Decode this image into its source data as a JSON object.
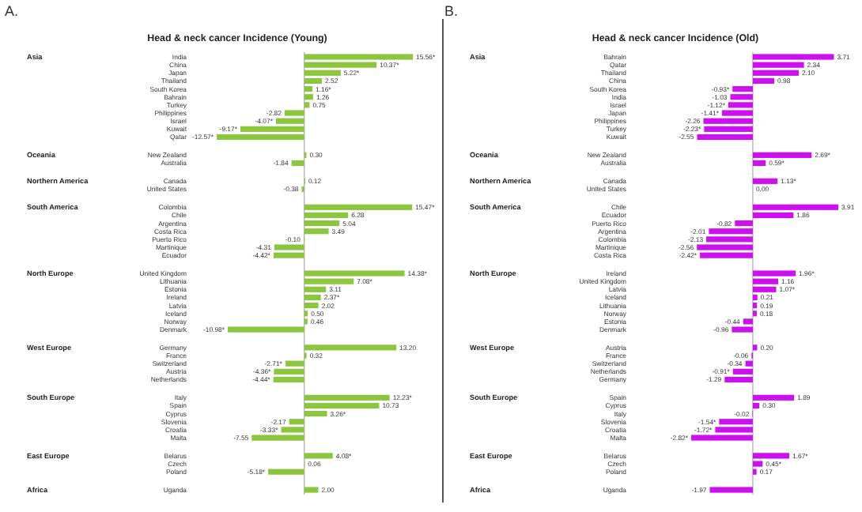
{
  "chart_data": [
    {
      "type": "bar",
      "orientation": "horizontal",
      "title": "Head & neck cancer Incidence (Young)",
      "color": "#8cc63f",
      "tick_labels": "y",
      "categories": [
        "India",
        "China",
        "Japan",
        "Thailand",
        "South Korea",
        "Bahrain",
        "Turkey",
        "Philippines",
        "Israel",
        "Kuwait",
        "Qatar",
        null,
        "New Zealand",
        "Australia",
        null,
        "Canada",
        "United States",
        null,
        "Colombia",
        "Chile",
        "Argentina",
        "Costa Rica",
        "Puerto Rico",
        "Martinique",
        "Ecuador",
        null,
        "United Kingdom",
        "Lithuania",
        "Estonia",
        "Ireland",
        "Latvia",
        "Iceland",
        "Norway",
        "Denmark",
        null,
        "Germany",
        "France",
        "Switzerland",
        "Austria",
        "Netherlands",
        null,
        "Italy",
        "Spain",
        "Cyprus",
        "Slovenia",
        "Croatia",
        "Malta",
        null,
        "Belarus",
        "Czech",
        "Poland",
        null,
        "Uganda"
      ],
      "values": [
        15.56,
        10.37,
        5.22,
        2.52,
        1.16,
        1.26,
        0.75,
        -2.82,
        -4.07,
        -9.17,
        -12.57,
        null,
        0.3,
        -1.84,
        null,
        0.12,
        -0.38,
        null,
        15.47,
        6.28,
        5.04,
        3.49,
        -0.1,
        -4.31,
        -4.42,
        null,
        14.38,
        7.08,
        3.11,
        2.37,
        2.02,
        0.5,
        0.46,
        -10.98,
        null,
        13.2,
        0.32,
        -2.71,
        -4.36,
        -4.44,
        null,
        12.23,
        10.73,
        3.26,
        -2.17,
        -3.33,
        -7.55,
        null,
        4.08,
        0.06,
        -5.18,
        null,
        2.0
      ],
      "value_labels": [
        "15.56*",
        "10.37*",
        "5.22*",
        "2.52",
        "1.16*",
        "1.26",
        "0.75",
        "-2.82",
        "-4.07*",
        "-9.17*",
        "-12.57*",
        null,
        "0.30",
        "-1.84",
        null,
        "0.12",
        "-0.38",
        null,
        "15.47*",
        "6.28",
        "5.04",
        "3.49",
        "-0.10",
        "-4.31",
        "-4.42*",
        null,
        "14.38*",
        "7.08*",
        "3.11",
        "2.37*",
        "2.02",
        "0.50",
        "0.46",
        "-10.98*",
        null,
        "13.20",
        "0.32",
        "-2.71*",
        "-4.36*",
        "-4.44*",
        null,
        "12.23*",
        "10.73",
        "3.26*",
        "-2.17",
        "-3.33*",
        "-7.55",
        null,
        "4.08*",
        "0.06",
        "-5.18*",
        null,
        "2.00"
      ],
      "annotations": [
        "A.",
        "Asia",
        "Oceania",
        "Northern America",
        "South America",
        "North Europe",
        "West Europe",
        "South Europe",
        "East Europe",
        "Africa"
      ]
    },
    {
      "type": "bar",
      "orientation": "horizontal",
      "title": "Head & neck cancer Incidence (Old)",
      "color": "#cc11ee",
      "tick_labels": "y",
      "categories": [
        "Bahrain",
        "Qatar",
        "Thailand",
        "China",
        "South Korea",
        "India",
        "Israel",
        "Japan",
        "Philippines",
        "Turkey",
        "Kuwait",
        null,
        "New Zealand",
        "Australia",
        null,
        "Canada",
        "United States",
        null,
        "Chile",
        "Ecuador",
        "Puerto Rico",
        "Argentina",
        "Colombia",
        "Martinique",
        "Costa Rica",
        null,
        "Ireland",
        "United Kingdom",
        "Latvia",
        "Iceland",
        "Lithuania",
        "Norway",
        "Estonia",
        "Denmark",
        null,
        "Austria",
        "France",
        "Switzerland",
        "Netherlands",
        "Germany",
        null,
        "Spain",
        "Cyprus",
        "Italy",
        "Slovenia",
        "Croatia",
        "Malta",
        null,
        "Belarus",
        "Czech",
        "Poland",
        null,
        "Uganda"
      ],
      "values": [
        3.71,
        2.34,
        2.1,
        0.98,
        -0.93,
        -1.03,
        -1.12,
        -1.41,
        -2.26,
        -2.23,
        -2.55,
        null,
        2.69,
        0.59,
        null,
        1.13,
        0.0,
        null,
        3.91,
        1.86,
        -0.82,
        -2.01,
        -2.13,
        -2.56,
        -2.42,
        null,
        1.96,
        1.16,
        1.07,
        0.21,
        0.19,
        0.18,
        -0.44,
        -0.96,
        null,
        0.2,
        -0.06,
        -0.34,
        -0.91,
        -1.29,
        null,
        1.89,
        0.3,
        -0.02,
        -1.54,
        -1.72,
        -2.82,
        null,
        1.67,
        0.45,
        0.17,
        null,
        -1.97
      ],
      "value_labels": [
        "3.71",
        "2.34",
        "2.10",
        "0.98",
        "-0.93*",
        "-1.03",
        "-1.12*",
        "-1.41*",
        "-2.26",
        "-2.23*",
        "-2.55",
        null,
        "2.69*",
        "0.59*",
        null,
        "1.13*",
        "0.00",
        null,
        "3.91",
        "1.86",
        "-0.82",
        "-2.01",
        "-2.13",
        "-2.56",
        "-2.42*",
        null,
        "1.96*",
        "1.16",
        "1.07*",
        "0.21",
        "0.19",
        "0.18",
        "-0.44",
        "-0.96",
        null,
        "0.20",
        "-0.06",
        "-0.34",
        "-0.91*",
        "-1.29",
        null,
        "1.89",
        "0.30",
        "-0.02",
        "-1.54*",
        "-1.72*",
        "-2.82*",
        null,
        "1.67*",
        "0.45*",
        "0.17",
        null,
        "-1.97"
      ],
      "annotations": [
        "B.",
        "Asia",
        "Oceania",
        "Northern America",
        "South America",
        "North Europe",
        "West Europe",
        "South Europe",
        "East Europe",
        "Africa"
      ]
    }
  ]
}
